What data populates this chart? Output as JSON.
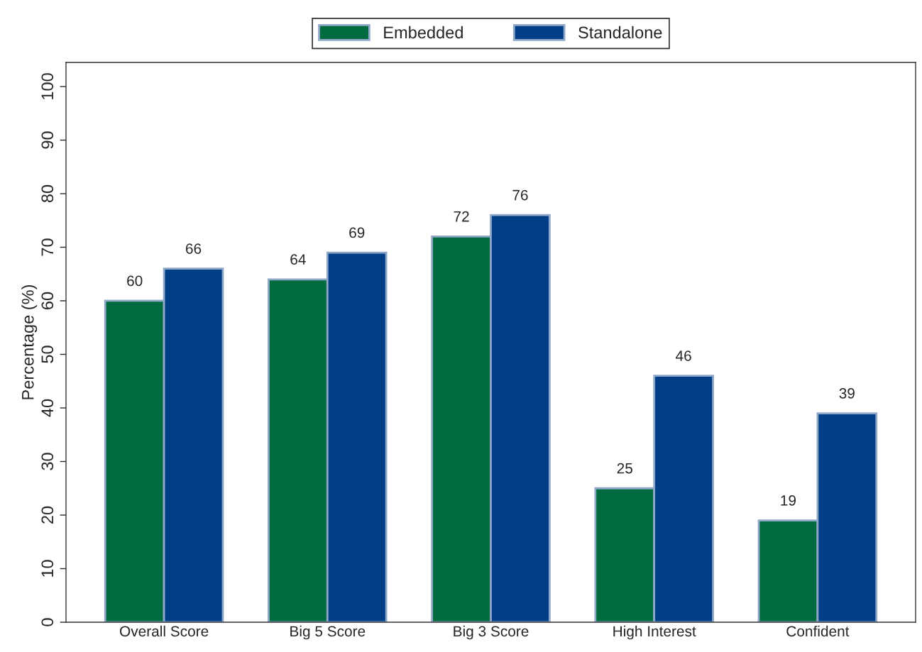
{
  "chart_data": {
    "type": "bar",
    "ylabel": "Percentage (%)",
    "categories": [
      "Overall Score",
      "Big 5 Score",
      "Big 3 Score",
      "High Interest",
      "Confident"
    ],
    "series": [
      {
        "name": "Embedded",
        "color": "#006b3f",
        "values": [
          60,
          64,
          72,
          25,
          19
        ]
      },
      {
        "name": "Standalone",
        "color": "#003e87",
        "values": [
          66,
          69,
          76,
          46,
          39
        ]
      }
    ],
    "ylim": [
      0,
      104.5
    ],
    "yticks": [
      0,
      10,
      20,
      30,
      40,
      50,
      60,
      70,
      80,
      90,
      100
    ],
    "data_labels": true,
    "legend": "top",
    "grid": false
  }
}
